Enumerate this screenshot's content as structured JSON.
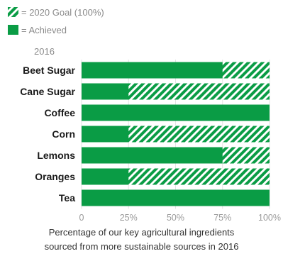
{
  "colors": {
    "achieved": "#0a9c45",
    "stripe": "#0a9c45",
    "background": "#ffffff"
  },
  "legend": {
    "goal_label": "= 2020 Goal (100%)",
    "achieved_label": "= Achieved"
  },
  "chart_data": {
    "type": "bar",
    "orientation": "horizontal",
    "year_label": "2016",
    "categories": [
      "Beet Sugar",
      "Cane Sugar",
      "Coffee",
      "Corn",
      "Lemons",
      "Oranges",
      "Tea"
    ],
    "series": [
      {
        "name": "= Achieved",
        "values": [
          75,
          25,
          100,
          25,
          75,
          25,
          100
        ]
      },
      {
        "name": "= 2020 Goal (100%)",
        "values": [
          100,
          100,
          100,
          100,
          100,
          100,
          100
        ]
      }
    ],
    "xlim": [
      0,
      100
    ],
    "x_ticks": [
      "0",
      "25%",
      "50%",
      "75%",
      "100%"
    ],
    "x_tick_values": [
      0,
      25,
      50,
      75,
      100
    ],
    "grid": true,
    "legend_position": "top-left"
  },
  "caption": {
    "line1": "Percentage of our key agricultural ingredients",
    "line2": "sourced from more sustainable sources in 2016"
  }
}
